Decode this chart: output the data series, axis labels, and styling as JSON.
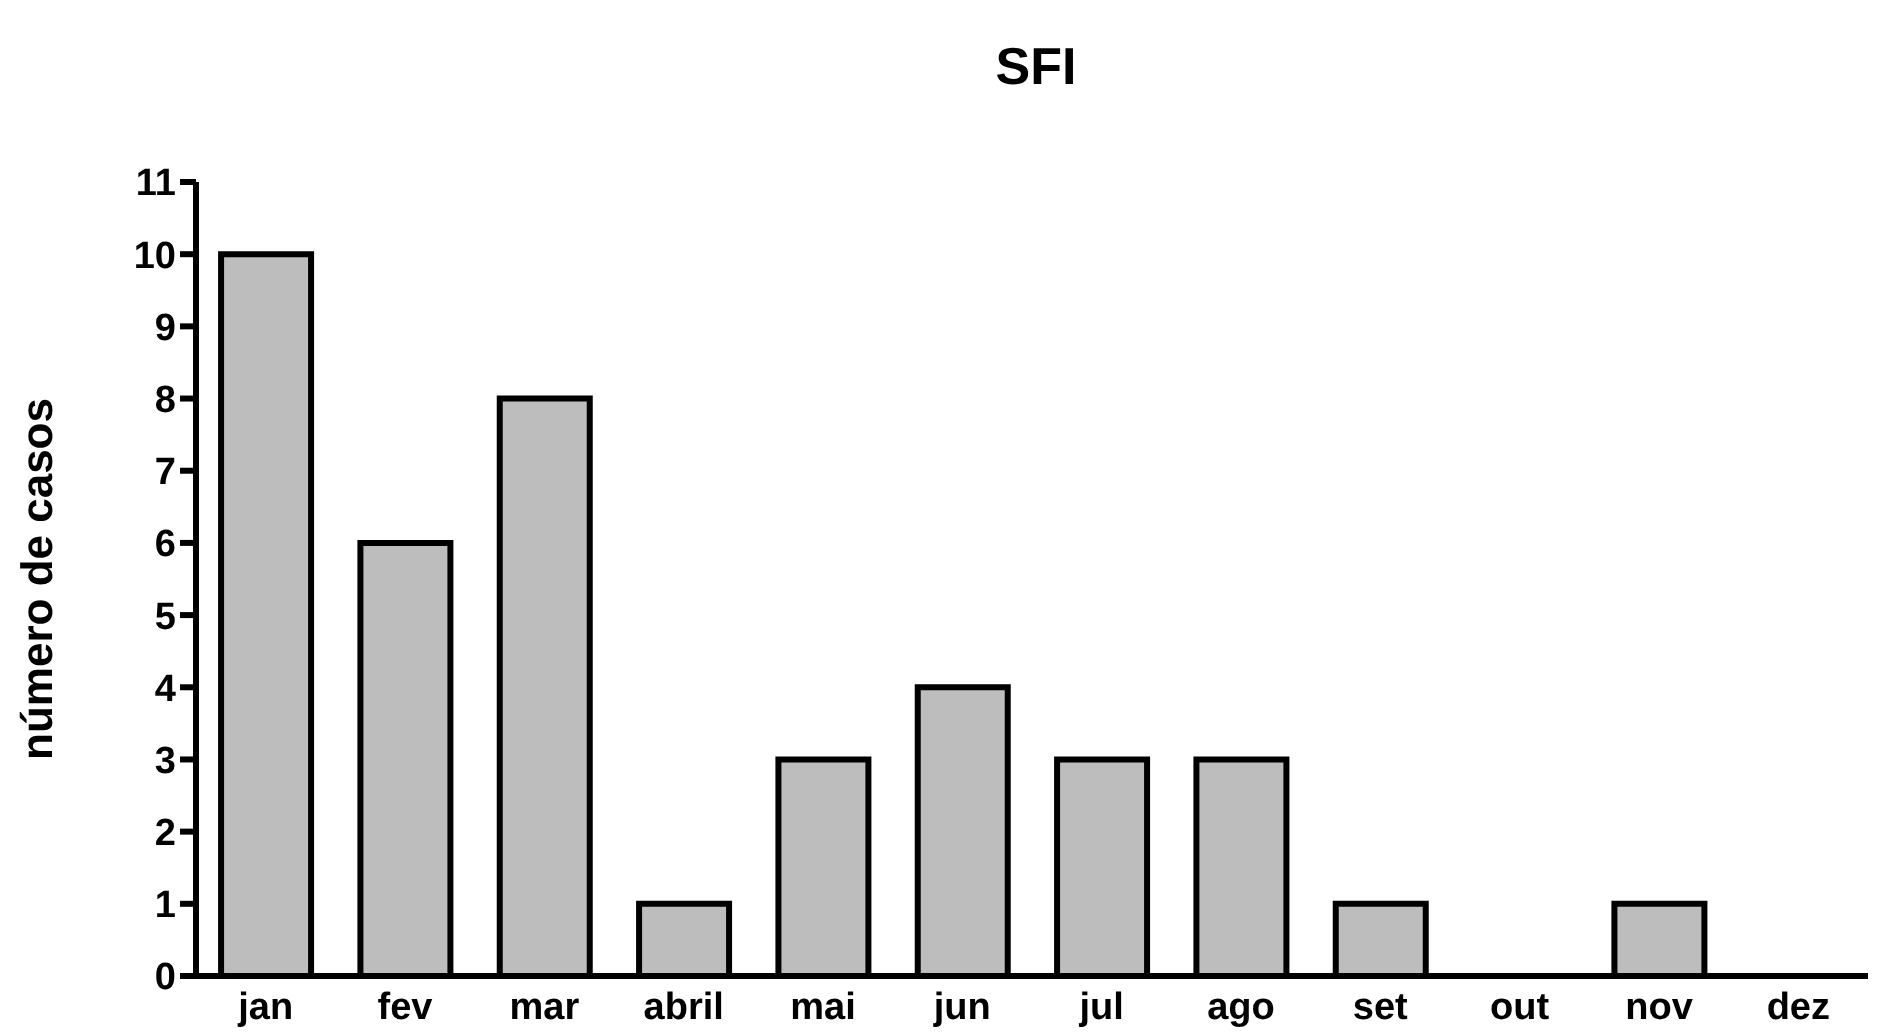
{
  "chart_data": {
    "type": "bar",
    "title": "SFI",
    "ylabel": "número de casos",
    "categories": [
      "jan",
      "fev",
      "mar",
      "abril",
      "mai",
      "jun",
      "jul",
      "ago",
      "set",
      "out",
      "nov",
      "dez"
    ],
    "values": [
      10,
      6,
      8,
      1,
      3,
      4,
      3,
      3,
      1,
      0,
      1,
      0
    ],
    "color": "#bdbdbd",
    "ylim": [
      0,
      11
    ],
    "yticks": [
      0,
      1,
      2,
      3,
      4,
      5,
      6,
      7,
      8,
      9,
      10,
      11
    ],
    "grid": false,
    "legend": false
  }
}
